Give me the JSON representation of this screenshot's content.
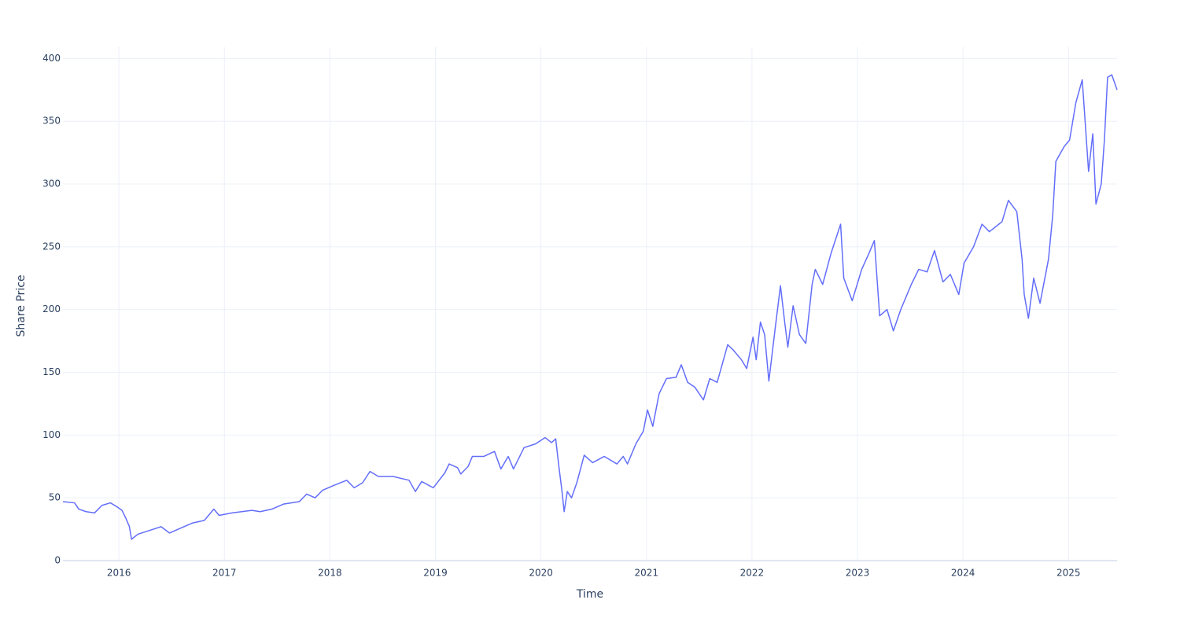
{
  "chart_data": {
    "type": "line",
    "x_label": "Time",
    "y_label": "Share Price",
    "xlim": [
      2015.47,
      2025.46
    ],
    "xticks": [
      2016,
      2017,
      2018,
      2019,
      2020,
      2021,
      2022,
      2023,
      2024,
      2025
    ],
    "ylim": [
      0,
      409
    ],
    "yticks": [
      0,
      50,
      100,
      150,
      200,
      250,
      300,
      350,
      400
    ],
    "grid": true,
    "series": [
      {
        "color": "#636efa",
        "x": [
          2015.47,
          2015.58,
          2015.62,
          2015.69,
          2015.77,
          2015.84,
          2015.92,
          2015.98,
          2016.03,
          2016.07,
          2016.1,
          2016.12,
          2016.18,
          2016.29,
          2016.4,
          2016.48,
          2016.59,
          2016.7,
          2016.81,
          2016.9,
          2016.95,
          2017.07,
          2017.26,
          2017.34,
          2017.45,
          2017.56,
          2017.71,
          2017.78,
          2017.86,
          2017.93,
          2018.04,
          2018.16,
          2018.23,
          2018.31,
          2018.38,
          2018.46,
          2018.6,
          2018.75,
          2018.81,
          2018.87,
          2018.98,
          2019.09,
          2019.13,
          2019.21,
          2019.24,
          2019.31,
          2019.35,
          2019.46,
          2019.56,
          2019.62,
          2019.69,
          2019.74,
          2019.84,
          2019.95,
          2020.04,
          2020.1,
          2020.14,
          2020.17,
          2020.2,
          2020.22,
          2020.25,
          2020.29,
          2020.34,
          2020.41,
          2020.49,
          2020.6,
          2020.72,
          2020.78,
          2020.82,
          2020.9,
          2020.97,
          2021.01,
          2021.06,
          2021.12,
          2021.19,
          2021.28,
          2021.33,
          2021.39,
          2021.46,
          2021.54,
          2021.6,
          2021.67,
          2021.77,
          2021.82,
          2021.9,
          2021.95,
          2022.01,
          2022.04,
          2022.08,
          2022.12,
          2022.16,
          2022.22,
          2022.27,
          2022.31,
          2022.34,
          2022.39,
          2022.45,
          2022.51,
          2022.57,
          2022.6,
          2022.67,
          2022.75,
          2022.84,
          2022.87,
          2022.95,
          2023.04,
          2023.11,
          2023.16,
          2023.21,
          2023.28,
          2023.34,
          2023.41,
          2023.51,
          2023.58,
          2023.66,
          2023.73,
          2023.81,
          2023.88,
          2023.96,
          2024.01,
          2024.1,
          2024.18,
          2024.25,
          2024.37,
          2024.43,
          2024.51,
          2024.56,
          2024.58,
          2024.62,
          2024.67,
          2024.73,
          2024.81,
          2024.85,
          2024.88,
          2024.96,
          2025.01,
          2025.07,
          2025.13,
          2025.19,
          2025.23,
          2025.26,
          2025.31,
          2025.34,
          2025.37,
          2025.41,
          2025.46
        ],
        "values": [
          47,
          46,
          41,
          39,
          38,
          44,
          46,
          43,
          40,
          33,
          27,
          17,
          21,
          24,
          27,
          22,
          26,
          30,
          32,
          41,
          36,
          38,
          40,
          39,
          41,
          45,
          47,
          53,
          50,
          56,
          60,
          64,
          58,
          62,
          71,
          67,
          67,
          64,
          55,
          63,
          58,
          70,
          77,
          74,
          69,
          75,
          83,
          83,
          87,
          73,
          83,
          73,
          90,
          93,
          98,
          94,
          97,
          75,
          55,
          39,
          55,
          50,
          62,
          84,
          78,
          83,
          77,
          83,
          77,
          93,
          103,
          120,
          107,
          133,
          145,
          146,
          156,
          142,
          138,
          128,
          145,
          142,
          172,
          168,
          160,
          153,
          178,
          160,
          190,
          180,
          143,
          185,
          219,
          190,
          170,
          203,
          180,
          173,
          220,
          232,
          220,
          245,
          268,
          225,
          207,
          232,
          245,
          255,
          195,
          200,
          183,
          200,
          220,
          232,
          230,
          247,
          222,
          228,
          212,
          237,
          250,
          268,
          262,
          270,
          287,
          278,
          240,
          212,
          193,
          225,
          205,
          240,
          275,
          318,
          330,
          335,
          365,
          383,
          310,
          340,
          284,
          300,
          335,
          385,
          387,
          375
        ]
      }
    ]
  }
}
